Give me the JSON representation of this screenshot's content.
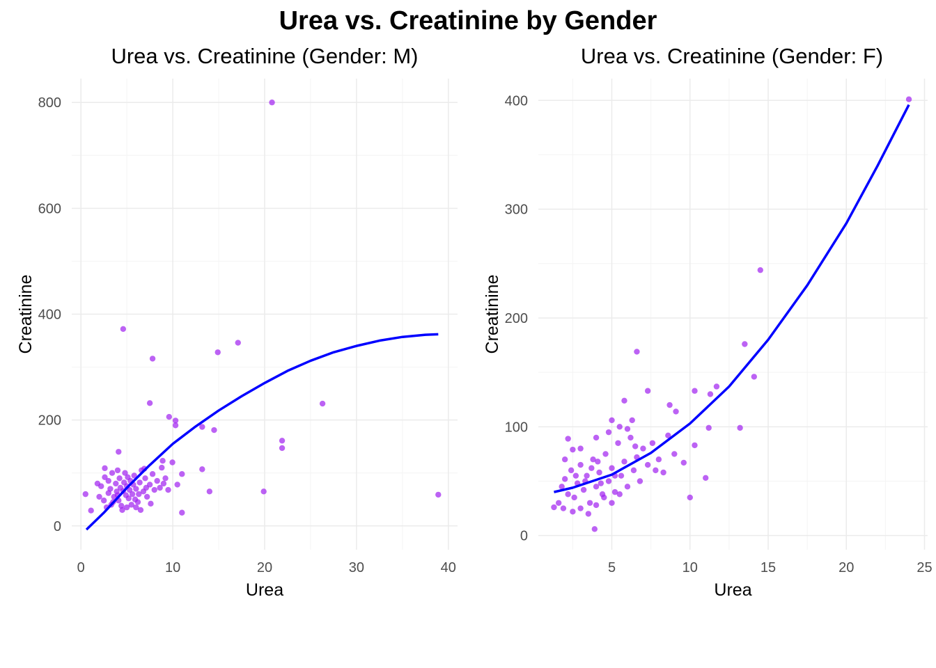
{
  "chart_data": {
    "title": "Urea vs. Creatinine by Gender",
    "colors": {
      "point": "#A020F0",
      "line": "#0000FF",
      "grid": "#EBEBEB"
    },
    "panels": [
      {
        "type": "scatter",
        "title": "Urea vs. Creatinine (Gender: M)",
        "xlabel": "Urea",
        "ylabel": "Creatinine",
        "xlim": [
          -1,
          41
        ],
        "ylim": [
          -45,
          845
        ],
        "xticks": [
          0,
          10,
          20,
          30,
          40
        ],
        "yticks": [
          0,
          200,
          400,
          600,
          800
        ],
        "xminor": [
          5,
          15,
          25,
          35
        ],
        "yminor": [
          100,
          300,
          500,
          700
        ],
        "points": [
          [
            20.8,
            800
          ],
          [
            4.6,
            372
          ],
          [
            7.8,
            316
          ],
          [
            14.9,
            328
          ],
          [
            17.1,
            346
          ],
          [
            7.5,
            232
          ],
          [
            9.6,
            206
          ],
          [
            10.3,
            199
          ],
          [
            10.3,
            190
          ],
          [
            26.3,
            231
          ],
          [
            21.9,
            161
          ],
          [
            21.9,
            147
          ],
          [
            13.2,
            187
          ],
          [
            14.5,
            181
          ],
          [
            13.2,
            107
          ],
          [
            14.0,
            65
          ],
          [
            19.9,
            65
          ],
          [
            38.9,
            59
          ],
          [
            11.0,
            25
          ],
          [
            0.5,
            60
          ],
          [
            1.1,
            29
          ],
          [
            4.1,
            140
          ],
          [
            8.9,
            123
          ],
          [
            9.96,
            120
          ],
          [
            11.0,
            98
          ],
          [
            2.6,
            109
          ],
          [
            2,
            55
          ],
          [
            2.5,
            48
          ],
          [
            3,
            62
          ],
          [
            3.2,
            70
          ],
          [
            3.5,
            45
          ],
          [
            3.8,
            80
          ],
          [
            4,
            58
          ],
          [
            4.2,
            90
          ],
          [
            4.4,
            38
          ],
          [
            4.6,
            66
          ],
          [
            4.8,
            100
          ],
          [
            5,
            75
          ],
          [
            5.2,
            52
          ],
          [
            5.4,
            85
          ],
          [
            5.6,
            60
          ],
          [
            5.8,
            95
          ],
          [
            6,
            70
          ],
          [
            6.2,
            45
          ],
          [
            6.4,
            82
          ],
          [
            6.6,
            105
          ],
          [
            6.8,
            65
          ],
          [
            7,
            90
          ],
          [
            7.2,
            55
          ],
          [
            7.5,
            78
          ],
          [
            7.8,
            98
          ],
          [
            8,
            68
          ],
          [
            8.3,
            85
          ],
          [
            8.6,
            72
          ],
          [
            9,
            80
          ],
          [
            9.5,
            68
          ],
          [
            3,
            85
          ],
          [
            3.4,
            100
          ],
          [
            4,
            105
          ],
          [
            4.5,
            30
          ],
          [
            5,
            35
          ],
          [
            5.5,
            40
          ],
          [
            6,
            35
          ],
          [
            6.5,
            30
          ],
          [
            2.2,
            75
          ],
          [
            2.8,
            35
          ],
          [
            3.6,
            55
          ],
          [
            4.3,
            72
          ],
          [
            5.1,
            92
          ],
          [
            5.9,
            50
          ],
          [
            6.3,
            60
          ],
          [
            7.1,
            72
          ],
          [
            3.9,
            65
          ],
          [
            4.9,
            58
          ],
          [
            5.3,
            68
          ],
          [
            4.1,
            48
          ],
          [
            1.8,
            80
          ],
          [
            10.5,
            78
          ],
          [
            9.2,
            90
          ],
          [
            8.8,
            110
          ],
          [
            2.6,
            92
          ],
          [
            7.6,
            42
          ],
          [
            6.9,
            108
          ],
          [
            3.3,
            40
          ],
          [
            4.7,
            82
          ],
          [
            5.7,
            78
          ]
        ],
        "smooth": [
          [
            0.6,
            -7
          ],
          [
            2.5,
            25
          ],
          [
            5,
            72
          ],
          [
            7.5,
            115
          ],
          [
            10,
            155
          ],
          [
            12.5,
            188
          ],
          [
            15,
            218
          ],
          [
            17.5,
            245
          ],
          [
            20,
            270
          ],
          [
            22.5,
            293
          ],
          [
            25,
            312
          ],
          [
            27.5,
            328
          ],
          [
            30,
            340
          ],
          [
            32.5,
            350
          ],
          [
            35,
            357
          ],
          [
            37.5,
            361
          ],
          [
            38.9,
            362
          ]
        ]
      },
      {
        "type": "scatter",
        "title": "Urea vs. Creatinine (Gender: F)",
        "xlabel": "Urea",
        "ylabel": "Creatinine",
        "xlim": [
          0.3,
          25.2
        ],
        "ylim": [
          -13,
          420
        ],
        "xticks": [
          5,
          10,
          15,
          20,
          25
        ],
        "yticks": [
          0,
          100,
          200,
          300,
          400
        ],
        "xminor": [
          2.5,
          7.5,
          12.5,
          17.5,
          22.5
        ],
        "yminor": [
          50,
          150,
          250,
          350
        ],
        "points": [
          [
            24.0,
            401
          ],
          [
            14.5,
            244
          ],
          [
            13.5,
            176
          ],
          [
            6.6,
            169
          ],
          [
            14.1,
            146
          ],
          [
            11.7,
            137
          ],
          [
            11.3,
            130
          ],
          [
            7.3,
            133
          ],
          [
            10.3,
            133
          ],
          [
            13.2,
            99
          ],
          [
            11.2,
            99
          ],
          [
            11.0,
            53
          ],
          [
            10.0,
            35
          ],
          [
            10.3,
            83
          ],
          [
            9.6,
            67
          ],
          [
            8.7,
            120
          ],
          [
            9.1,
            114
          ],
          [
            3.9,
            6
          ],
          [
            1.3,
            26
          ],
          [
            2.2,
            89
          ],
          [
            5.8,
            124
          ],
          [
            6.3,
            106
          ],
          [
            5.0,
            106
          ],
          [
            2.5,
            79
          ],
          [
            1.6,
            30
          ],
          [
            1.8,
            45
          ],
          [
            2,
            52
          ],
          [
            2.2,
            38
          ],
          [
            2.4,
            60
          ],
          [
            2.6,
            35
          ],
          [
            2.8,
            48
          ],
          [
            3,
            65
          ],
          [
            3.2,
            42
          ],
          [
            3.4,
            55
          ],
          [
            3.6,
            30
          ],
          [
            3.8,
            70
          ],
          [
            4,
            45
          ],
          [
            4.2,
            58
          ],
          [
            4.4,
            38
          ],
          [
            4.6,
            75
          ],
          [
            4.8,
            50
          ],
          [
            5,
            62
          ],
          [
            5.2,
            40
          ],
          [
            5.4,
            85
          ],
          [
            5.6,
            55
          ],
          [
            5.8,
            68
          ],
          [
            6,
            45
          ],
          [
            6.2,
            90
          ],
          [
            6.4,
            60
          ],
          [
            6.6,
            72
          ],
          [
            6.8,
            50
          ],
          [
            7,
            80
          ],
          [
            7.3,
            65
          ],
          [
            7.6,
            85
          ],
          [
            8,
            70
          ],
          [
            8.3,
            58
          ],
          [
            8.6,
            92
          ],
          [
            9,
            75
          ],
          [
            3,
            25
          ],
          [
            2.5,
            22
          ],
          [
            3.5,
            20
          ],
          [
            4,
            28
          ],
          [
            4.5,
            35
          ],
          [
            5,
            30
          ],
          [
            5.5,
            38
          ],
          [
            2,
            70
          ],
          [
            3,
            80
          ],
          [
            4,
            90
          ],
          [
            4.8,
            95
          ],
          [
            5.5,
            100
          ],
          [
            6,
            98
          ],
          [
            3.3,
            50
          ],
          [
            4.3,
            48
          ],
          [
            5.2,
            55
          ],
          [
            3.7,
            62
          ],
          [
            2.7,
            55
          ],
          [
            4.1,
            68
          ],
          [
            6.5,
            82
          ],
          [
            7.8,
            60
          ],
          [
            1.9,
            25
          ]
        ],
        "smooth": [
          [
            1.3,
            40
          ],
          [
            2.5,
            44
          ],
          [
            5,
            56
          ],
          [
            7.5,
            76
          ],
          [
            10,
            103
          ],
          [
            12.5,
            137
          ],
          [
            15,
            180
          ],
          [
            17.5,
            230
          ],
          [
            20,
            287
          ],
          [
            22,
            340
          ],
          [
            24,
            396
          ]
        ]
      }
    ]
  }
}
